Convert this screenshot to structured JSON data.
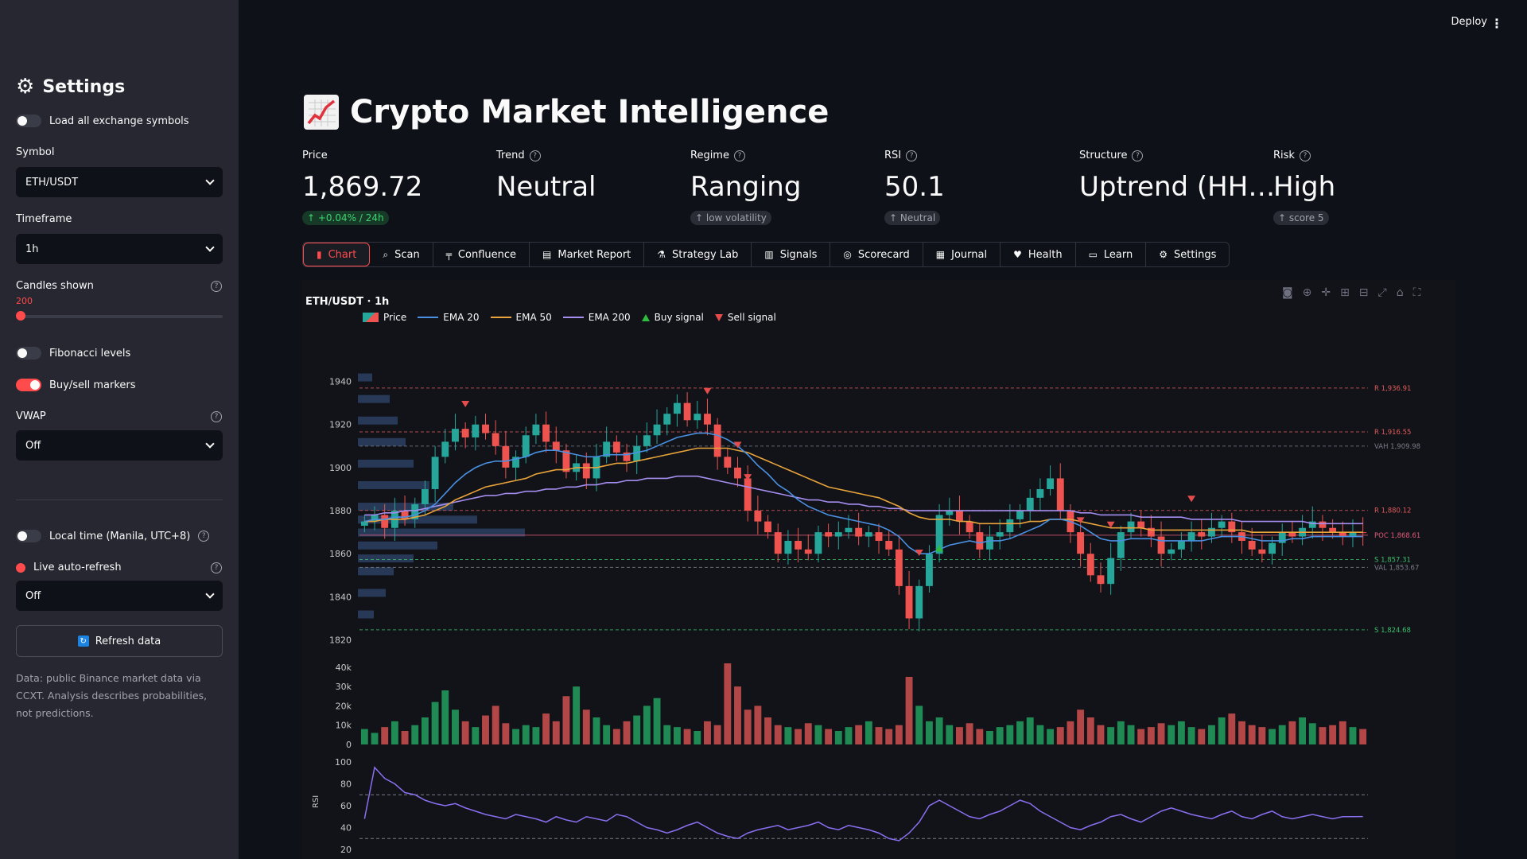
{
  "sidebar": {
    "title": "Settings",
    "load_all_label": "Load all exchange symbols",
    "symbol_label": "Symbol",
    "symbol_value": "ETH/USDT",
    "timeframe_label": "Timeframe",
    "timeframe_value": "1h",
    "candles_label": "Candles shown",
    "candles_value": "200",
    "fib_label": "Fibonacci levels",
    "markers_label": "Buy/sell markers",
    "vwap_label": "VWAP",
    "vwap_value": "Off",
    "local_time_label": "Local time (Manila, UTC+8)",
    "live_label": "Live auto-refresh",
    "live_value": "Off",
    "refresh_label": "Refresh data",
    "note": "Data: public Binance market data via CCXT. Analysis describes probabilities, not predictions."
  },
  "header": {
    "deploy": "Deploy",
    "title": "Crypto Market Intelligence"
  },
  "metrics": [
    {
      "label": "Price",
      "value": "1,869.72",
      "delta": "↑ +0.04% / 24h"
    },
    {
      "label": "Trend",
      "value": "Neutral"
    },
    {
      "label": "Regime",
      "value": "Ranging",
      "delta": "↑ low volatility"
    },
    {
      "label": "RSI",
      "value": "50.1",
      "delta": "↑ Neutral"
    },
    {
      "label": "Structure",
      "value": "Uptrend (HH…"
    },
    {
      "label": "Risk",
      "value": "High",
      "delta": "↑ score 5"
    }
  ],
  "tabs": [
    "Chart",
    "Scan",
    "Confluence",
    "Market Report",
    "Strategy Lab",
    "Signals",
    "Scorecard",
    "Journal",
    "Health",
    "Learn",
    "Settings"
  ],
  "chart_data": {
    "type": "candlestick",
    "title": "ETH/USDT · 1h",
    "legend": [
      "Price",
      "EMA 20",
      "EMA 50",
      "EMA 200",
      "Buy signal",
      "Sell signal"
    ],
    "price_ticks": [
      "1940",
      "1920",
      "1900",
      "1880",
      "1860",
      "1840",
      "1820"
    ],
    "volume_ticks": [
      "40k",
      "30k",
      "20k",
      "10k",
      "0"
    ],
    "rsi_ticks": [
      "100",
      "80",
      "60",
      "40",
      "20"
    ],
    "rsi_label": "RSI",
    "ylim": [
      1818,
      1945
    ],
    "levels": [
      {
        "label": "R 1,936.91",
        "value": 1936.91
      },
      {
        "label": "R 1,916.55",
        "value": 1916.55
      },
      {
        "label": "VAH 1,909.98",
        "value": 1909.98
      },
      {
        "label": "R 1,880.12",
        "value": 1880.12
      },
      {
        "label": "POC 1,868.61",
        "value": 1868.61
      },
      {
        "label": "S 1,857.31",
        "value": 1857.31
      },
      {
        "label": "VAL 1,853.67",
        "value": 1853.67
      },
      {
        "label": "S 1,824.68",
        "value": 1824.68
      }
    ],
    "close_series": [
      1875,
      1878,
      1872,
      1880,
      1876,
      1883,
      1890,
      1905,
      1912,
      1918,
      1914,
      1920,
      1916,
      1910,
      1900,
      1905,
      1915,
      1920,
      1912,
      1908,
      1898,
      1902,
      1895,
      1905,
      1912,
      1907,
      1903,
      1910,
      1915,
      1920,
      1925,
      1930,
      1922,
      1925,
      1920,
      1905,
      1900,
      1895,
      1880,
      1875,
      1870,
      1860,
      1866,
      1862,
      1860,
      1870,
      1868,
      1870,
      1872,
      1868,
      1870,
      1866,
      1862,
      1845,
      1830,
      1845,
      1860,
      1878,
      1880,
      1875,
      1870,
      1862,
      1868,
      1870,
      1876,
      1880,
      1886,
      1890,
      1895,
      1880,
      1870,
      1860,
      1850,
      1846,
      1858,
      1870,
      1875,
      1872,
      1868,
      1860,
      1862,
      1866,
      1870,
      1868,
      1872,
      1875,
      1870,
      1866,
      1862,
      1860,
      1865,
      1870,
      1868,
      1872,
      1875,
      1872,
      1870,
      1868,
      1870,
      1869.72
    ],
    "ema20": [
      1875,
      1876,
      1876,
      1877,
      1877,
      1878,
      1880,
      1883,
      1888,
      1893,
      1897,
      1900,
      1902,
      1903,
      1903,
      1904,
      1905,
      1907,
      1908,
      1908,
      1907,
      1906,
      1905,
      1905,
      1906,
      1906,
      1906,
      1907,
      1908,
      1910,
      1912,
      1914,
      1915,
      1916,
      1916,
      1915,
      1913,
      1910,
      1906,
      1901,
      1897,
      1892,
      1889,
      1885,
      1882,
      1880,
      1878,
      1877,
      1876,
      1875,
      1874,
      1873,
      1871,
      1868,
      1863,
      1860,
      1860,
      1862,
      1864,
      1865,
      1866,
      1865,
      1866,
      1866,
      1867,
      1869,
      1871,
      1873,
      1876,
      1876,
      1875,
      1873,
      1870,
      1867,
      1866,
      1866,
      1867,
      1867,
      1867,
      1866,
      1866,
      1866,
      1866,
      1866,
      1867,
      1868,
      1868,
      1868,
      1867,
      1866,
      1866,
      1866,
      1867,
      1867,
      1868,
      1868,
      1868,
      1868,
      1868,
      1868
    ],
    "ema50": [
      1875,
      1875,
      1876,
      1876,
      1876,
      1877,
      1878,
      1880,
      1882,
      1885,
      1887,
      1889,
      1891,
      1892,
      1893,
      1894,
      1895,
      1897,
      1898,
      1899,
      1899,
      1900,
      1900,
      1900,
      1901,
      1902,
      1902,
      1903,
      1904,
      1905,
      1906,
      1907,
      1908,
      1909,
      1909,
      1909,
      1909,
      1908,
      1907,
      1905,
      1903,
      1901,
      1899,
      1897,
      1895,
      1893,
      1891,
      1890,
      1889,
      1888,
      1887,
      1886,
      1884,
      1882,
      1879,
      1877,
      1876,
      1876,
      1876,
      1875,
      1875,
      1874,
      1874,
      1874,
      1874,
      1874,
      1875,
      1875,
      1876,
      1876,
      1876,
      1875,
      1874,
      1873,
      1872,
      1872,
      1872,
      1872,
      1871,
      1871,
      1871,
      1871,
      1871,
      1871,
      1871,
      1871,
      1871,
      1871,
      1870,
      1870,
      1870,
      1870,
      1870,
      1870,
      1870,
      1870,
      1870,
      1870,
      1870,
      1870
    ],
    "ema200": [
      1878,
      1878,
      1879,
      1879,
      1880,
      1880,
      1881,
      1882,
      1883,
      1884,
      1885,
      1886,
      1887,
      1887,
      1888,
      1888,
      1889,
      1889,
      1890,
      1890,
      1891,
      1891,
      1892,
      1892,
      1893,
      1893,
      1894,
      1894,
      1895,
      1895,
      1895,
      1896,
      1896,
      1896,
      1895,
      1894,
      1893,
      1892,
      1891,
      1890,
      1889,
      1888,
      1887,
      1886,
      1885,
      1885,
      1884,
      1884,
      1883,
      1883,
      1882,
      1882,
      1881,
      1881,
      1880,
      1880,
      1880,
      1880,
      1880,
      1880,
      1880,
      1880,
      1880,
      1880,
      1880,
      1880,
      1880,
      1880,
      1880,
      1880,
      1880,
      1879,
      1879,
      1878,
      1878,
      1878,
      1878,
      1877,
      1877,
      1877,
      1877,
      1877,
      1876,
      1876,
      1876,
      1876,
      1876,
      1875,
      1875,
      1875,
      1875,
      1875,
      1875,
      1875,
      1874,
      1874,
      1874,
      1874,
      1874,
      1874
    ],
    "volume": [
      8,
      6,
      9,
      12,
      7,
      10,
      14,
      22,
      28,
      18,
      12,
      9,
      15,
      20,
      11,
      8,
      10,
      9,
      16,
      12,
      25,
      30,
      18,
      14,
      10,
      8,
      12,
      15,
      20,
      24,
      10,
      9,
      8,
      7,
      12,
      10,
      42,
      30,
      18,
      20,
      14,
      10,
      9,
      8,
      11,
      10,
      8,
      7,
      9,
      10,
      12,
      9,
      8,
      10,
      35,
      20,
      12,
      14,
      10,
      9,
      11,
      8,
      7,
      9,
      10,
      12,
      14,
      10,
      8,
      9,
      12,
      18,
      14,
      10,
      9,
      12,
      10,
      8,
      9,
      11,
      10,
      12,
      9,
      8,
      10,
      14,
      16,
      12,
      10,
      9,
      8,
      10,
      12,
      14,
      11,
      9,
      10,
      12,
      9,
      8
    ],
    "rsi": [
      48,
      95,
      85,
      80,
      72,
      70,
      65,
      62,
      60,
      62,
      58,
      55,
      52,
      50,
      48,
      52,
      50,
      48,
      45,
      50,
      47,
      45,
      50,
      48,
      46,
      52,
      50,
      45,
      40,
      38,
      35,
      38,
      42,
      45,
      40,
      35,
      32,
      30,
      35,
      38,
      40,
      42,
      38,
      40,
      42,
      45,
      40,
      38,
      42,
      40,
      38,
      35,
      30,
      28,
      35,
      45,
      60,
      65,
      60,
      55,
      50,
      48,
      52,
      55,
      60,
      65,
      62,
      55,
      50,
      45,
      40,
      38,
      42,
      45,
      50,
      52,
      48,
      45,
      50,
      55,
      58,
      55,
      52,
      50,
      48,
      52,
      55,
      50,
      48,
      52,
      55,
      50,
      48,
      50,
      52,
      50,
      48,
      50,
      50,
      50.1
    ]
  }
}
